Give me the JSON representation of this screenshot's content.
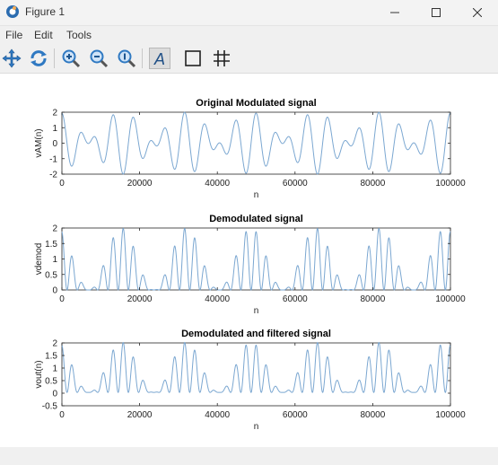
{
  "window": {
    "title": "Figure 1"
  },
  "menu": [
    "File",
    "Edit",
    "Tools"
  ],
  "toolbar": {
    "icons": [
      "pan-icon",
      "rotate-icon",
      "zoom-in-icon",
      "zoom-out-icon",
      "zoom-reset-icon",
      "text-icon",
      "axes-box-icon",
      "grid-icon"
    ]
  },
  "colors": {
    "line": "#7ba7d1",
    "axis": "#262626",
    "accent": "#1f6fb5"
  },
  "chart_data": [
    {
      "type": "line",
      "title": "Original Modulated signal",
      "xlabel": "n",
      "ylabel": "vAM(n)",
      "xlim": [
        0,
        100000
      ],
      "ylim": [
        -2,
        2
      ],
      "yticks": [
        -2,
        -1,
        0,
        1,
        2
      ],
      "xticks": [
        0,
        20000,
        40000,
        60000,
        80000,
        100000
      ],
      "grid": false,
      "signal": "am_modulated"
    },
    {
      "type": "line",
      "title": "Demodulated signal",
      "xlabel": "n",
      "ylabel": "vdemod",
      "xlim": [
        0,
        100000
      ],
      "ylim": [
        0,
        2
      ],
      "yticks": [
        0,
        0.5,
        1,
        1.5,
        2
      ],
      "xticks": [
        0,
        20000,
        40000,
        60000,
        80000,
        100000
      ],
      "grid": false,
      "signal": "demodulated"
    },
    {
      "type": "line",
      "title": "Demodulated and filtered signal",
      "xlabel": "n",
      "ylabel": "vout(n)",
      "xlim": [
        0,
        100000
      ],
      "ylim": [
        -0.5,
        2
      ],
      "yticks": [
        -0.5,
        0,
        0.5,
        1,
        1.5,
        2
      ],
      "xticks": [
        0,
        20000,
        40000,
        60000,
        80000,
        100000
      ],
      "grid": false,
      "signal": "filtered"
    }
  ]
}
